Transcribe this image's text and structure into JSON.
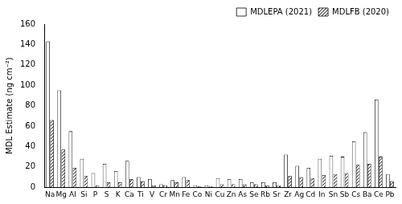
{
  "chart_data": {
    "type": "bar",
    "y_label": "MDL Estimate (ng cm⁻²)",
    "categories": [
      "Na",
      "Mg",
      "Al",
      "Si",
      "P",
      "S",
      "K",
      "Ca",
      "Ti",
      "V",
      "Cr",
      "Mn",
      "Fe",
      "Co",
      "Ni",
      "Cu",
      "Zn",
      "As",
      "Se",
      "Rb",
      "Sr",
      "Zr",
      "Ag",
      "Cd",
      "In",
      "Sn",
      "Sb",
      "Cs",
      "Ba",
      "Ce",
      "Pb"
    ],
    "series": [
      {
        "name": "MDLEPA (2021)",
        "color": "#ffffff",
        "values": [
          143,
          95,
          55,
          28,
          14,
          23,
          16,
          26,
          10,
          8,
          3,
          7,
          10,
          2,
          2,
          9,
          8,
          8,
          5,
          5,
          5,
          32,
          21,
          19,
          28,
          31,
          30,
          45,
          54,
          86,
          13
        ]
      },
      {
        "name": "MDLFB (2020)",
        "color": "#000000",
        "values": [
          66,
          37,
          19,
          11,
          2,
          5,
          5,
          8,
          6,
          2,
          2,
          5,
          7,
          1,
          1,
          3,
          3,
          3,
          3,
          2,
          2,
          11,
          10,
          9,
          12,
          13,
          14,
          22,
          23,
          30,
          6
        ]
      }
    ],
    "ylim": [
      0,
      160
    ],
    "yticks": [
      0,
      20,
      40,
      60,
      80,
      100,
      120,
      140,
      160
    ],
    "grid": false,
    "legend": "upper right"
  }
}
